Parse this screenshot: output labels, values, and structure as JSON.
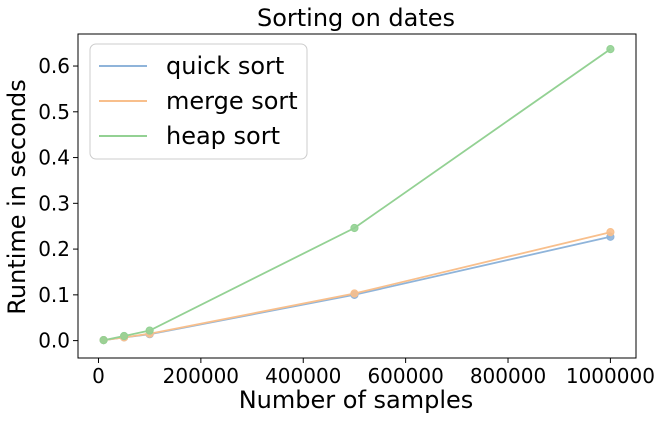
{
  "chart_data": {
    "type": "line",
    "title": "Sorting on dates",
    "xlabel": "Number of samples",
    "ylabel": "Runtime in seconds",
    "x": [
      10000,
      50000,
      100000,
      500000,
      1000000
    ],
    "series": [
      {
        "name": "quick sort",
        "color": "#8fb4da",
        "values": [
          0.001,
          0.007,
          0.014,
          0.1,
          0.227
        ]
      },
      {
        "name": "merge sort",
        "color": "#f8bf8c",
        "values": [
          0.001,
          0.007,
          0.015,
          0.103,
          0.237
        ]
      },
      {
        "name": "heap sort",
        "color": "#93d193",
        "values": [
          0.001,
          0.01,
          0.022,
          0.246,
          0.637
        ]
      }
    ],
    "xlim": [
      -40000,
      1050000
    ],
    "ylim": [
      -0.038,
      0.67
    ],
    "xticks": [
      0,
      200000,
      400000,
      600000,
      800000,
      1000000
    ],
    "xtick_labels": [
      "0",
      "200000",
      "400000",
      "600000",
      "800000",
      "1000000"
    ],
    "yticks": [
      0.0,
      0.1,
      0.2,
      0.3,
      0.4,
      0.5,
      0.6
    ],
    "ytick_labels": [
      "0.0",
      "0.1",
      "0.2",
      "0.3",
      "0.4",
      "0.5",
      "0.6"
    ],
    "grid": false,
    "legend_position": "top-left",
    "markers": true
  }
}
